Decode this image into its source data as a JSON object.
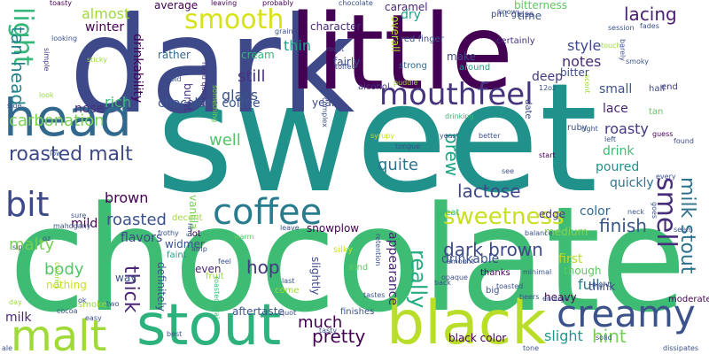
{
  "words": [
    {
      "text": "sweet",
      "color": "#21918c"
    },
    {
      "text": "chocolate",
      "color": "#3fbc73"
    },
    {
      "text": "dark",
      "color": "#3e4989"
    },
    {
      "text": "little",
      "color": "#440154"
    },
    {
      "text": "head",
      "color": "#31688e"
    },
    {
      "text": "black",
      "color": "#b8de29"
    },
    {
      "text": "stout",
      "color": "#2db27d"
    },
    {
      "text": "malt",
      "color": "#a0da39"
    },
    {
      "text": "creamy",
      "color": "#3b528b"
    },
    {
      "text": "coffee",
      "color": "#287c8e"
    },
    {
      "text": "mouthfeel",
      "color": "#46337e"
    },
    {
      "text": "smooth",
      "color": "#d8e219"
    },
    {
      "text": "light",
      "color": "#35b779"
    },
    {
      "text": "bit",
      "color": "#3e4989"
    },
    {
      "text": "smell",
      "color": "#472d7b"
    },
    {
      "text": "brew",
      "color": "#20a486"
    },
    {
      "text": "milk stout",
      "color": "#2c728e"
    },
    {
      "text": "sweetness",
      "color": "#c8e020"
    },
    {
      "text": "roasted malt",
      "color": "#3e4989"
    },
    {
      "text": "tan head",
      "color": "#26828e"
    },
    {
      "text": "carbonation",
      "color": "#7ad151"
    },
    {
      "text": "lacing",
      "color": "#481f70"
    },
    {
      "text": "finish",
      "color": "#39568c"
    },
    {
      "text": "hint",
      "color": "#75d054"
    },
    {
      "text": "really",
      "color": "#25ac82"
    },
    {
      "text": "pretty",
      "color": "#440154"
    },
    {
      "text": "thick",
      "color": "#482475"
    },
    {
      "text": "much",
      "color": "#440154"
    },
    {
      "text": "dark brown",
      "color": "#3e4989"
    },
    {
      "text": "lactose",
      "color": "#3e4989"
    },
    {
      "text": "roasted",
      "color": "#3b528b"
    },
    {
      "text": "quite",
      "color": "#2a768e"
    },
    {
      "text": "smoke",
      "color": "#9bd93c"
    },
    {
      "text": "still",
      "color": "#46337e"
    },
    {
      "text": "glass",
      "color": "#3b528b"
    },
    {
      "text": "well",
      "color": "#52c569"
    },
    {
      "text": "body",
      "color": "#52c569"
    },
    {
      "text": "hop",
      "color": "#453781"
    },
    {
      "text": "milk",
      "color": "#482878"
    },
    {
      "text": "notes",
      "color": "#472c7a"
    },
    {
      "text": "thin",
      "color": "#1fa187"
    },
    {
      "text": "almost",
      "color": "#a0da39"
    },
    {
      "text": "winter",
      "color": "#440154"
    },
    {
      "text": "style",
      "color": "#3e4989"
    },
    {
      "text": "small",
      "color": "#3b528b"
    },
    {
      "text": "lace",
      "color": "#482475"
    },
    {
      "text": "roasty",
      "color": "#453781"
    },
    {
      "text": "drink",
      "color": "#3fbc73"
    },
    {
      "text": "poured",
      "color": "#21918c"
    },
    {
      "text": "quickly",
      "color": "#2c728e"
    },
    {
      "text": "color",
      "color": "#31688e"
    },
    {
      "text": "full",
      "color": "#2a788e"
    },
    {
      "text": "first",
      "color": "#b5de2b"
    },
    {
      "text": "slight",
      "color": "#1f988b"
    },
    {
      "text": "black color",
      "color": "#440154"
    },
    {
      "text": "drinkable",
      "color": "#3b528b"
    },
    {
      "text": "appearance",
      "color": "#482475"
    },
    {
      "text": "brown",
      "color": "#440154"
    },
    {
      "text": "flavors",
      "color": "#3e4989"
    },
    {
      "text": "mild",
      "color": "#440154"
    },
    {
      "text": "malty",
      "color": "#75d054"
    },
    {
      "text": "nose",
      "color": "#472d7b"
    },
    {
      "text": "rich",
      "color": "#3fbc73"
    },
    {
      "text": "drinkability",
      "color": "#440154"
    },
    {
      "text": "rather",
      "color": "#31688e"
    },
    {
      "text": "cream",
      "color": "#35b779"
    },
    {
      "text": "chocolate coffee",
      "color": "#39568c"
    },
    {
      "text": "average",
      "color": "#440154"
    },
    {
      "text": "character",
      "color": "#482878"
    },
    {
      "text": "caramel",
      "color": "#482475"
    },
    {
      "text": "bitterness",
      "color": "#5ec962"
    },
    {
      "text": "dry",
      "color": "#1f9e89"
    },
    {
      "text": "overall",
      "color": "#b8de29"
    },
    {
      "text": "deep",
      "color": "#453781"
    },
    {
      "text": "make",
      "color": "#3e4989"
    },
    {
      "text": "bitter",
      "color": "#3e4989"
    },
    {
      "text": "burnt",
      "color": "#46337e"
    },
    {
      "text": "time",
      "color": "#3b528b"
    },
    {
      "text": "edge",
      "color": "#453781"
    },
    {
      "text": "medium",
      "color": "#84d44b"
    },
    {
      "text": "vanilla",
      "color": "#75d054"
    },
    {
      "text": "widmer",
      "color": "#3b528b"
    },
    {
      "text": "faint",
      "color": "#1f9e89"
    },
    {
      "text": "decent",
      "color": "#a0da39"
    },
    {
      "text": "even",
      "color": "#482475"
    },
    {
      "text": "way",
      "color": "#39568c"
    },
    {
      "text": "definitely",
      "color": "#3b528b"
    },
    {
      "text": "slightly",
      "color": "#3e4989"
    },
    {
      "text": "snowplow",
      "color": "#440154"
    },
    {
      "text": "silky",
      "color": "#c8e020"
    },
    {
      "text": "great",
      "color": "#35b779"
    },
    {
      "text": "thanks",
      "color": "#440154"
    },
    {
      "text": "though",
      "color": "#5ec962"
    },
    {
      "text": "think",
      "color": "#3e4989"
    },
    {
      "text": "heavy",
      "color": "#440154"
    },
    {
      "text": "nothing",
      "color": "#c8e020"
    },
    {
      "text": "aftertaste",
      "color": "#3b528b"
    },
    {
      "text": "finishes",
      "color": "#3b528b"
    },
    {
      "text": "year",
      "color": "#3e4989"
    },
    {
      "text": "fairly",
      "color": "#3e4989"
    },
    {
      "text": "red finger",
      "color": "#3b528b"
    },
    {
      "text": "alcohol",
      "color": "#453781"
    },
    {
      "text": "strong",
      "color": "#31688e"
    },
    {
      "text": "pint glass",
      "color": "#3e4989"
    },
    {
      "text": "certainly",
      "color": "#46337e"
    },
    {
      "text": "around",
      "color": "#1f9e89"
    },
    {
      "text": "lot",
      "color": "#440154"
    },
    {
      "text": "tan",
      "color": "#5ec962"
    },
    {
      "text": "end",
      "color": "#453781"
    },
    {
      "text": "half",
      "color": "#3e4989"
    },
    {
      "text": "ruby",
      "color": "#3b528b"
    },
    {
      "text": "date",
      "color": "#3e4989"
    },
    {
      "text": "toasty",
      "color": "#440154"
    },
    {
      "text": "grain",
      "color": "#3b528b"
    },
    {
      "text": "probably",
      "color": "#440154"
    },
    {
      "text": "leaving",
      "color": "#440154"
    },
    {
      "text": "looking",
      "color": "#3b528b"
    },
    {
      "text": "simple",
      "color": "#453781"
    },
    {
      "text": "sticky",
      "color": "#9bd93c"
    },
    {
      "text": "cold",
      "color": "#3b528b"
    },
    {
      "text": "head quickly",
      "color": "#46337e"
    },
    {
      "text": "something",
      "color": "#7ad151"
    },
    {
      "text": "look",
      "color": "#9bd93c"
    },
    {
      "text": "side",
      "color": "#3b528b"
    },
    {
      "text": "toffee",
      "color": "#3e4989"
    },
    {
      "text": "roast",
      "color": "#3e4989"
    },
    {
      "text": "complex",
      "color": "#3b528b"
    },
    {
      "text": "drinking",
      "color": "#35b779"
    },
    {
      "text": "syrupy",
      "color": "#c8e020"
    },
    {
      "text": "tongue",
      "color": "#3b528b"
    },
    {
      "text": "yeast",
      "color": "#3b528b"
    },
    {
      "text": "better",
      "color": "#3b528b"
    },
    {
      "text": "see",
      "color": "#3b528b"
    },
    {
      "text": "start",
      "color": "#440154"
    },
    {
      "text": "left",
      "color": "#3b528b"
    },
    {
      "text": "guess",
      "color": "#440154"
    },
    {
      "text": "found",
      "color": "#3e4989"
    },
    {
      "text": "goes",
      "color": "#3b528b"
    },
    {
      "text": "every",
      "color": "#3b528b"
    },
    {
      "text": "seem",
      "color": "#3b528b"
    },
    {
      "text": "low",
      "color": "#3b528b"
    },
    {
      "text": "sure",
      "color": "#3b528b"
    },
    {
      "text": "mahogany",
      "color": "#3b528b"
    },
    {
      "text": "sip",
      "color": "#3b528b"
    },
    {
      "text": "oz",
      "color": "#3b528b"
    },
    {
      "text": "ring",
      "color": "#3b528b"
    },
    {
      "text": "frothy",
      "color": "#3b528b"
    },
    {
      "text": "warm",
      "color": "#5ec962"
    },
    {
      "text": "leave",
      "color": "#3b528b"
    },
    {
      "text": "retention",
      "color": "#3b528b"
    },
    {
      "text": "amp",
      "color": "#3b528b"
    },
    {
      "text": "feel",
      "color": "#3b528b"
    },
    {
      "text": "fruit",
      "color": "#9bd93c"
    },
    {
      "text": "kind",
      "color": "#5ec962"
    },
    {
      "text": "tastes",
      "color": "#3b528b"
    },
    {
      "text": "tasty",
      "color": "#3b528b"
    },
    {
      "text": "come",
      "color": "#9bd93c"
    },
    {
      "text": "big",
      "color": "#3b528b"
    },
    {
      "text": "toasted",
      "color": "#3b528b"
    },
    {
      "text": "enough",
      "color": "#3b528b"
    },
    {
      "text": "moderate",
      "color": "#440154"
    },
    {
      "text": "beers",
      "color": "#3b528b"
    },
    {
      "text": "opaque",
      "color": "#3b528b"
    },
    {
      "text": "amount",
      "color": "#3b528b"
    },
    {
      "text": "minimal",
      "color": "#3b528b"
    },
    {
      "text": "night",
      "color": "#3b528b"
    },
    {
      "text": "solid",
      "color": "#3b528b"
    },
    {
      "text": "tone",
      "color": "#3b528b"
    },
    {
      "text": "cocoa",
      "color": "#3b528b"
    },
    {
      "text": "ok",
      "color": "#3b528b"
    },
    {
      "text": "two",
      "color": "#3b528b"
    },
    {
      "text": "easy",
      "color": "#3b528b"
    },
    {
      "text": "ale",
      "color": "#3b528b"
    },
    {
      "text": "day",
      "color": "#9bd93c"
    },
    {
      "text": "best",
      "color": "#3b528b"
    },
    {
      "text": "last",
      "color": "#3b528b"
    },
    {
      "text": "roasted grain",
      "color": "#35b779"
    },
    {
      "text": "quot",
      "color": "#3b528b"
    },
    {
      "text": "dissipates",
      "color": "#3b528b"
    },
    {
      "text": "12oz",
      "color": "#3b528b"
    },
    {
      "text": "know",
      "color": "#3b528b"
    },
    {
      "text": "session",
      "color": "#3b528b"
    },
    {
      "text": "barely",
      "color": "#3b528b"
    },
    {
      "text": "neck",
      "color": "#3b528b"
    },
    {
      "text": "balance",
      "color": "#3b528b"
    },
    {
      "text": "right",
      "color": "#3b528b"
    },
    {
      "text": "scent",
      "color": "#9bd93c"
    },
    {
      "text": "smoky",
      "color": "#3b528b"
    },
    {
      "text": "colored",
      "color": "#9bd93c"
    },
    {
      "text": "back",
      "color": "#3b528b"
    },
    {
      "text": "chocolate",
      "color": "#3b528b"
    },
    {
      "text": "fades",
      "color": "#3b528b"
    },
    {
      "text": "puddle",
      "color": "#9bd93c"
    },
    {
      "text": "touch",
      "color": "#9bd93c"
    }
  ]
}
